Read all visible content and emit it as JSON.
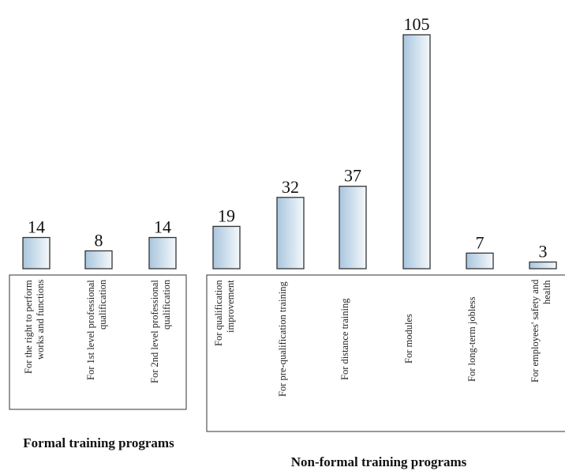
{
  "chart_data": {
    "type": "bar",
    "groups": [
      {
        "name": "Formal training programs",
        "categories": [
          "For the right to perform works and functions",
          "For 1st level professional qualification",
          "For 2nd level professional qualification"
        ],
        "values": [
          14,
          8,
          14
        ]
      },
      {
        "name": "Non-formal training programs",
        "categories": [
          "For qualification improvement",
          "For pre-qualification training",
          "For distance training",
          "For modules",
          "For long-term jobless",
          "For employees' safety and health"
        ],
        "values": [
          19,
          32,
          37,
          105,
          7,
          3
        ]
      }
    ]
  }
}
